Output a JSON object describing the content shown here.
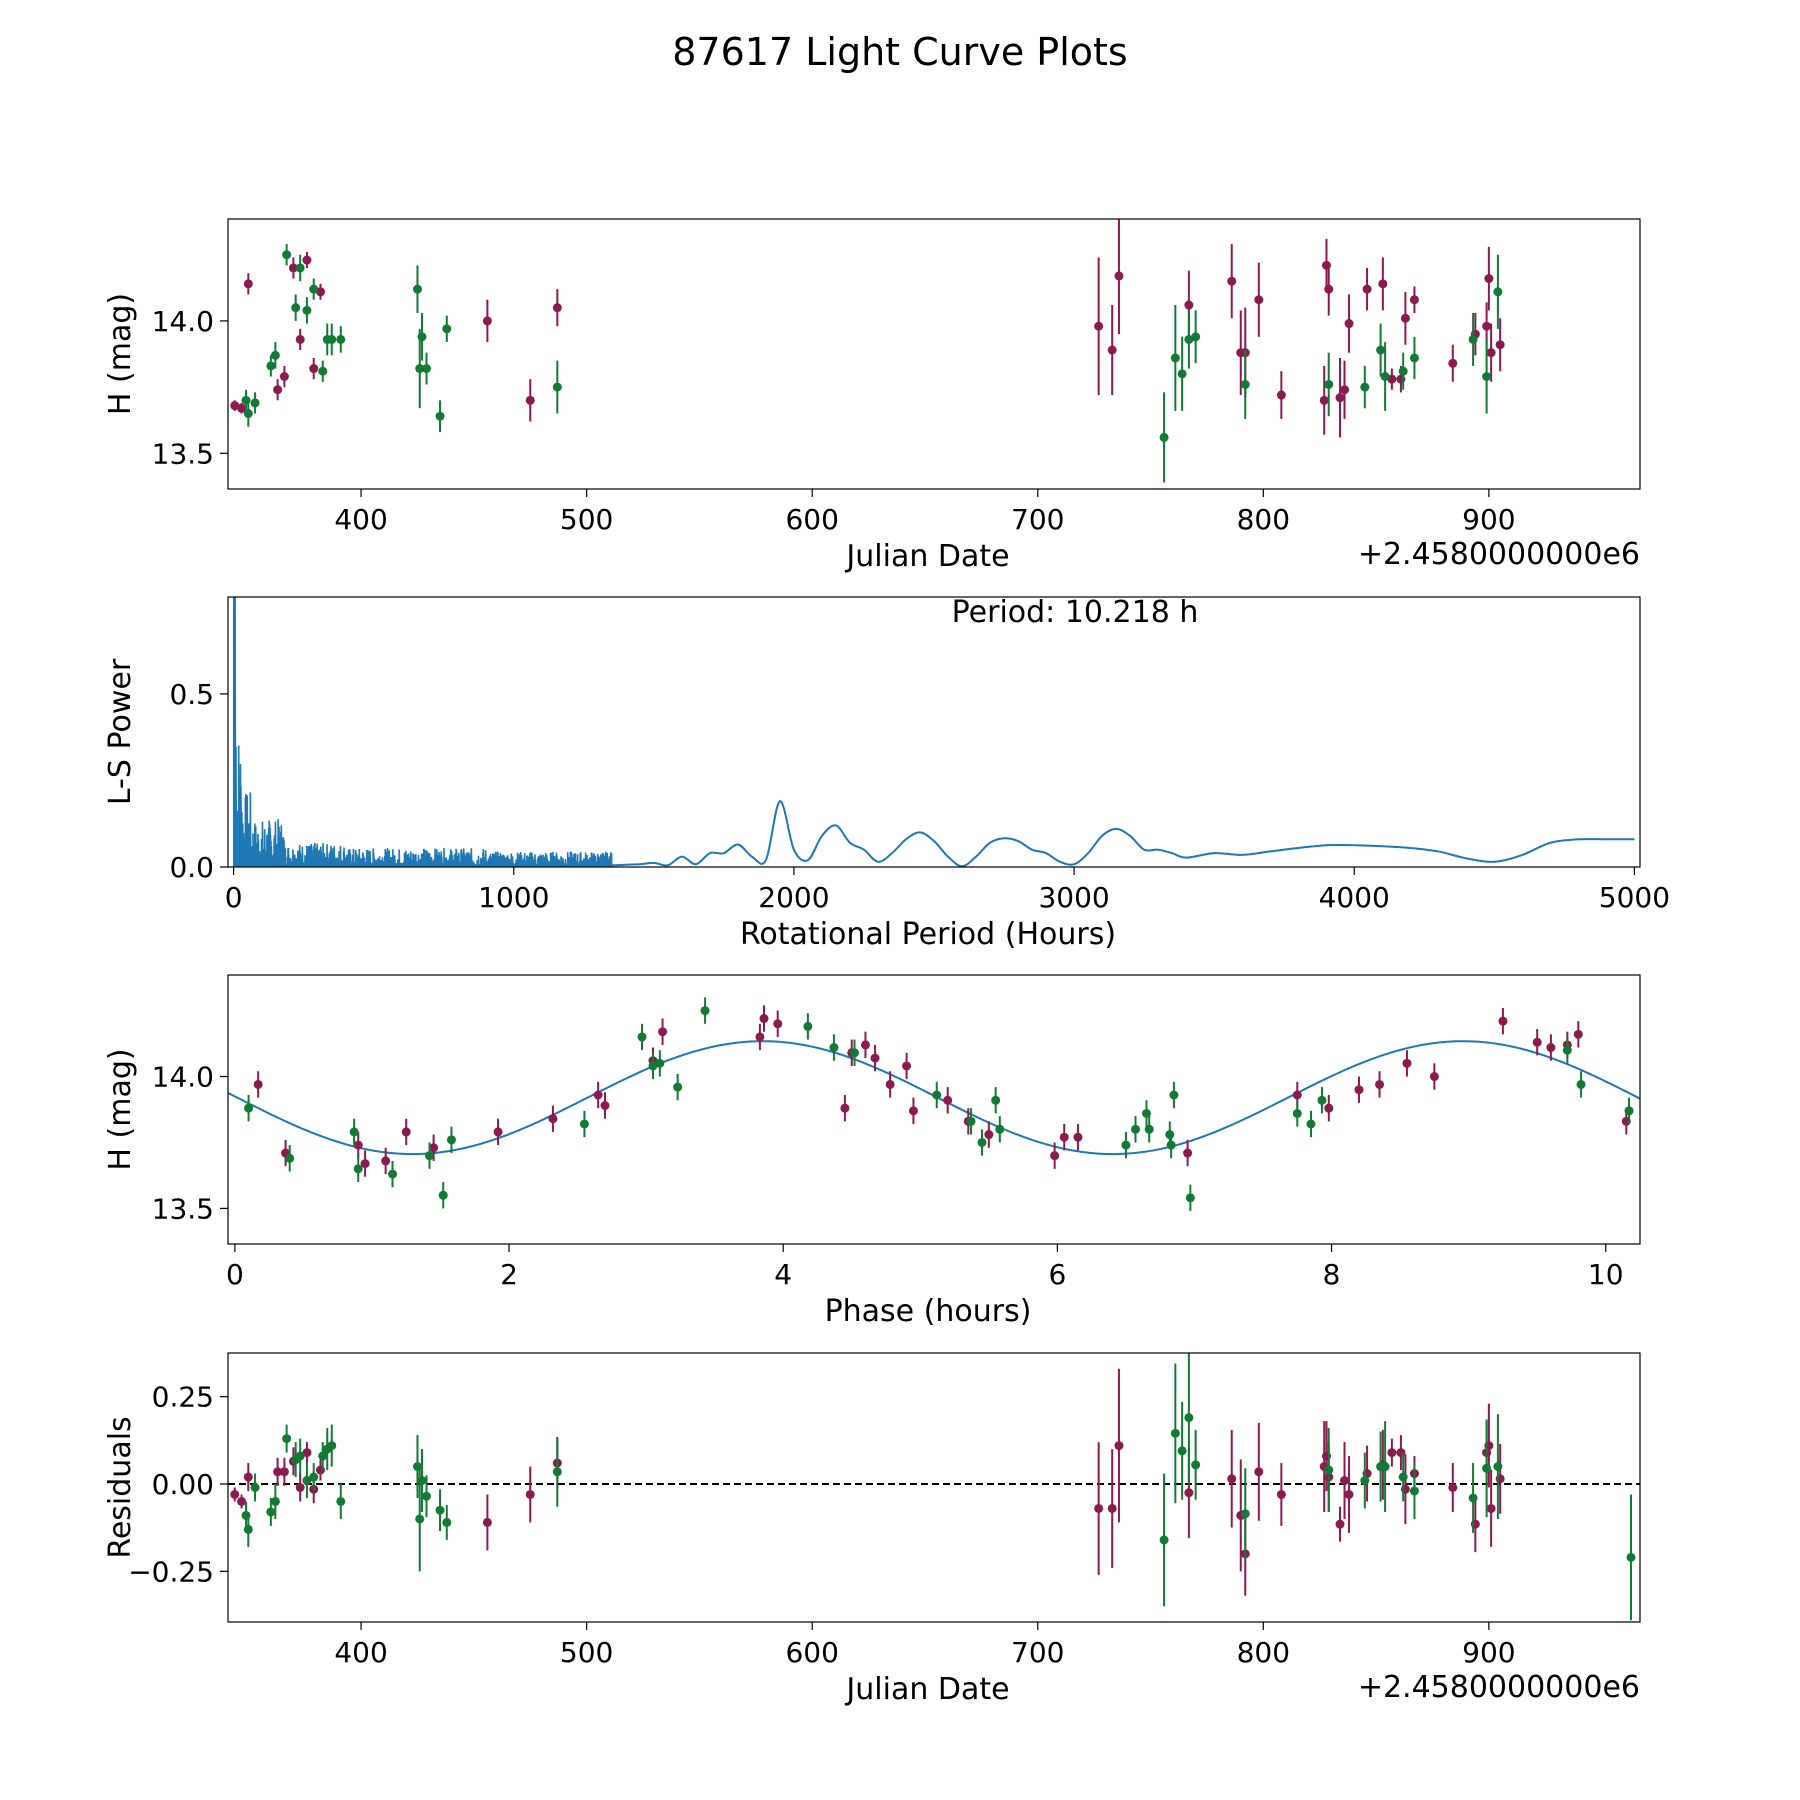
{
  "title": "87617 Light Curve Plots",
  "colors": {
    "r_band": "#8b1a4f",
    "g_band": "#137a35",
    "fit_line": "#1f77b4",
    "periodogram": "#1f77b4",
    "zero_line": "#000000"
  },
  "chart_data": [
    {
      "id": "lightcurve",
      "type": "scatter",
      "xlabel": "Julian Date",
      "ylabel": "H (mag)",
      "offset_label": "+2.4580000000e6",
      "xlim": [
        341,
        967
      ],
      "ylim": [
        13.365,
        14.385
      ],
      "xticks": [
        400,
        500,
        600,
        700,
        800,
        900
      ],
      "yticks": [
        13.5,
        14.0
      ],
      "ytick_labels": [
        "13.5",
        "14.0"
      ],
      "series": [
        {
          "name": "r",
          "color_key": "r_band",
          "x": [
            344,
            347,
            350,
            363,
            366,
            370,
            373,
            376,
            379,
            382,
            456,
            475,
            487,
            727,
            733,
            736,
            767,
            786,
            790,
            792,
            798,
            808,
            827,
            828,
            829,
            834,
            836,
            838,
            846,
            853,
            857,
            861,
            863,
            867,
            884,
            894,
            899,
            900,
            901,
            905
          ],
          "y": [
            13.68,
            13.67,
            14.14,
            13.74,
            13.79,
            14.2,
            13.93,
            14.23,
            13.82,
            14.11,
            14.0,
            13.7,
            14.05,
            13.98,
            13.89,
            14.17,
            14.06,
            14.15,
            13.88,
            13.88,
            14.08,
            13.72,
            13.7,
            14.21,
            14.12,
            13.71,
            13.74,
            13.99,
            14.12,
            14.14,
            13.78,
            13.78,
            14.01,
            14.08,
            13.84,
            13.95,
            13.98,
            14.16,
            13.88,
            13.91
          ],
          "err": [
            0.02,
            0.02,
            0.04,
            0.04,
            0.04,
            0.04,
            0.04,
            0.03,
            0.04,
            0.03,
            0.08,
            0.08,
            0.07,
            0.26,
            0.17,
            0.22,
            0.13,
            0.14,
            0.16,
            0.17,
            0.14,
            0.09,
            0.13,
            0.1,
            0.1,
            0.15,
            0.11,
            0.11,
            0.08,
            0.1,
            0.04,
            0.05,
            0.1,
            0.05,
            0.07,
            0.08,
            0.09,
            0.12,
            0.11,
            0.1
          ]
        },
        {
          "name": "g",
          "color_key": "g_band",
          "x": [
            349,
            350,
            353,
            360,
            362,
            367,
            371,
            373,
            376,
            379,
            383,
            385,
            387,
            391,
            425,
            426,
            427,
            429,
            435,
            438,
            487,
            756,
            761,
            764,
            767,
            770,
            792,
            829,
            845,
            852,
            854,
            862,
            867,
            893,
            899,
            904
          ],
          "y": [
            13.7,
            13.65,
            13.69,
            13.83,
            13.87,
            14.25,
            14.05,
            14.2,
            14.04,
            14.12,
            13.81,
            13.93,
            13.93,
            13.93,
            14.12,
            13.82,
            13.94,
            13.82,
            13.64,
            13.97,
            13.75,
            13.56,
            13.86,
            13.8,
            13.93,
            13.94,
            13.76,
            13.76,
            13.75,
            13.89,
            13.79,
            13.81,
            13.86,
            13.93,
            13.79,
            14.11
          ],
          "err": [
            0.04,
            0.05,
            0.04,
            0.04,
            0.05,
            0.04,
            0.05,
            0.05,
            0.05,
            0.04,
            0.04,
            0.06,
            0.06,
            0.05,
            0.09,
            0.15,
            0.09,
            0.06,
            0.06,
            0.05,
            0.1,
            0.17,
            0.2,
            0.14,
            0.11,
            0.1,
            0.13,
            0.12,
            0.08,
            0.1,
            0.13,
            0.07,
            0.08,
            0.1,
            0.14,
            0.14
          ]
        }
      ]
    },
    {
      "id": "periodogram",
      "type": "line",
      "annotation": "Period: 10.218 h",
      "xlabel": "Rotational Period (Hours)",
      "ylabel": "L-S Power",
      "xlim": [
        -20,
        5020
      ],
      "ylim": [
        0,
        0.78
      ],
      "xticks": [
        0,
        1000,
        2000,
        3000,
        4000,
        5000
      ],
      "yticks": [
        0.0,
        0.5
      ],
      "ytick_labels": [
        "0.0",
        "0.5"
      ],
      "spike_region": [
        0,
        1350
      ],
      "smooth_curve": {
        "x": [
          1350,
          1450,
          1500,
          1550,
          1600,
          1650,
          1700,
          1750,
          1800,
          1850,
          1900,
          1950,
          2000,
          2050,
          2100,
          2150,
          2200,
          2250,
          2300,
          2350,
          2400,
          2450,
          2500,
          2550,
          2600,
          2650,
          2700,
          2750,
          2800,
          2850,
          2900,
          2950,
          3000,
          3050,
          3100,
          3150,
          3200,
          3250,
          3300,
          3350,
          3400,
          3500,
          3600,
          3700,
          3800,
          3900,
          4000,
          4100,
          4200,
          4300,
          4400,
          4500,
          4600,
          4700,
          4800,
          4900,
          5000
        ],
        "y": [
          0.005,
          0.008,
          0.012,
          0.005,
          0.03,
          0.008,
          0.04,
          0.04,
          0.065,
          0.03,
          0.02,
          0.19,
          0.05,
          0.02,
          0.09,
          0.12,
          0.07,
          0.05,
          0.015,
          0.04,
          0.08,
          0.1,
          0.075,
          0.03,
          0.002,
          0.03,
          0.07,
          0.083,
          0.075,
          0.05,
          0.04,
          0.015,
          0.008,
          0.04,
          0.09,
          0.11,
          0.09,
          0.05,
          0.05,
          0.04,
          0.027,
          0.04,
          0.035,
          0.045,
          0.055,
          0.063,
          0.063,
          0.06,
          0.055,
          0.045,
          0.025,
          0.015,
          0.035,
          0.07,
          0.08,
          0.08,
          0.08
        ]
      }
    },
    {
      "id": "phased",
      "type": "scatter",
      "xlabel": "Phase (hours)",
      "ylabel": "H (mag)",
      "xlim": [
        -0.05,
        10.25
      ],
      "ylim": [
        13.365,
        14.385
      ],
      "xticks": [
        0,
        2,
        4,
        6,
        8,
        10
      ],
      "yticks": [
        13.5,
        14.0
      ],
      "ytick_labels": [
        "13.5",
        "14.0"
      ],
      "fit": {
        "mean": 13.92,
        "amplitude": 0.214,
        "period": 5.109,
        "phase_shift": 3.85
      },
      "series": [
        {
          "name": "r",
          "color_key": "r_band",
          "x": [
            0.17,
            0.37,
            0.9,
            0.95,
            1.1,
            1.25,
            1.45,
            1.92,
            2.32,
            2.65,
            2.7,
            3.05,
            3.12,
            3.83,
            3.86,
            3.96,
            4.45,
            4.5,
            4.6,
            4.67,
            4.78,
            4.9,
            4.95,
            5.2,
            5.35,
            5.5,
            5.98,
            6.05,
            6.15,
            6.95,
            7.75,
            7.98,
            8.2,
            8.35,
            8.55,
            8.75,
            9.25,
            9.5,
            9.6,
            9.72,
            9.8,
            10.15
          ],
          "y": [
            13.97,
            13.71,
            13.74,
            13.67,
            13.68,
            13.79,
            13.73,
            13.79,
            13.84,
            13.93,
            13.89,
            14.06,
            14.17,
            14.15,
            14.22,
            14.2,
            13.88,
            14.09,
            14.12,
            14.07,
            13.97,
            14.04,
            13.87,
            13.91,
            13.83,
            13.78,
            13.7,
            13.77,
            13.77,
            13.71,
            13.93,
            13.88,
            13.95,
            13.97,
            14.05,
            14.0,
            14.21,
            14.13,
            14.11,
            14.12,
            14.16,
            13.83
          ]
        },
        {
          "name": "g",
          "color_key": "g_band",
          "x": [
            0.1,
            0.4,
            0.87,
            0.9,
            1.15,
            1.42,
            1.52,
            1.58,
            2.55,
            2.97,
            3.05,
            3.1,
            3.23,
            3.43,
            4.18,
            4.37,
            4.52,
            5.12,
            5.37,
            5.45,
            5.55,
            5.58,
            6.5,
            6.57,
            6.65,
            6.67,
            6.82,
            6.83,
            6.85,
            6.97,
            7.75,
            7.85,
            7.93,
            9.72,
            9.82,
            10.17
          ],
          "y": [
            13.88,
            13.69,
            13.79,
            13.65,
            13.63,
            13.7,
            13.55,
            13.76,
            13.82,
            14.15,
            14.04,
            14.05,
            13.96,
            14.25,
            14.19,
            14.11,
            14.09,
            13.93,
            13.83,
            13.75,
            13.91,
            13.8,
            13.74,
            13.8,
            13.86,
            13.8,
            13.78,
            13.74,
            13.93,
            13.54,
            13.86,
            13.82,
            13.91,
            14.1,
            13.97,
            13.87
          ]
        }
      ]
    },
    {
      "id": "residuals",
      "type": "scatter",
      "xlabel": "Julian Date",
      "ylabel": "Residuals",
      "offset_label": "+2.4580000000e6",
      "xlim": [
        341,
        967
      ],
      "ylim": [
        -0.395,
        0.375
      ],
      "xticks": [
        400,
        500,
        600,
        700,
        800,
        900
      ],
      "yticks": [
        -0.25,
        0.0,
        0.25
      ],
      "ytick_labels": [
        "−0.25",
        "0.00",
        "0.25"
      ],
      "series": [
        {
          "name": "r",
          "color_key": "r_band",
          "x": [
            344,
            347,
            350,
            363,
            366,
            370,
            373,
            376,
            379,
            382,
            456,
            475,
            487,
            727,
            733,
            736,
            767,
            786,
            790,
            792,
            798,
            808,
            827,
            828,
            829,
            834,
            836,
            838,
            846,
            853,
            857,
            861,
            863,
            867,
            884,
            894,
            899,
            900,
            901,
            905
          ],
          "y": [
            -0.03,
            -0.05,
            0.02,
            0.035,
            0.035,
            0.065,
            -0.01,
            0.09,
            -0.015,
            0.04,
            -0.11,
            -0.03,
            0.06,
            -0.07,
            -0.07,
            0.11,
            -0.025,
            0.015,
            -0.09,
            -0.2,
            0.035,
            -0.03,
            0.05,
            0.08,
            0.02,
            -0.115,
            0.01,
            -0.03,
            0.03,
            0.055,
            0.09,
            0.09,
            -0.015,
            0.03,
            -0.01,
            -0.115,
            0.09,
            0.11,
            -0.07,
            0.015
          ],
          "err": [
            0.02,
            0.02,
            0.04,
            0.04,
            0.04,
            0.04,
            0.04,
            0.03,
            0.04,
            0.03,
            0.08,
            0.08,
            0.07,
            0.19,
            0.17,
            0.22,
            0.13,
            0.14,
            0.16,
            0.12,
            0.14,
            0.09,
            0.13,
            0.1,
            0.1,
            0.05,
            0.11,
            0.11,
            0.08,
            0.1,
            0.04,
            0.05,
            0.1,
            0.05,
            0.07,
            0.08,
            0.09,
            0.12,
            0.11,
            0.1
          ]
        },
        {
          "name": "g",
          "color_key": "g_band",
          "x": [
            349,
            350,
            353,
            360,
            362,
            367,
            371,
            373,
            376,
            379,
            383,
            385,
            387,
            391,
            425,
            426,
            427,
            429,
            435,
            438,
            487,
            756,
            761,
            764,
            767,
            770,
            792,
            829,
            845,
            852,
            854,
            862,
            867,
            893,
            899,
            904,
            963
          ],
          "y": [
            -0.09,
            -0.13,
            -0.01,
            -0.08,
            -0.05,
            0.13,
            0.07,
            0.08,
            0.01,
            0.02,
            0.08,
            0.1,
            0.11,
            -0.05,
            0.05,
            -0.1,
            0.01,
            -0.035,
            -0.075,
            -0.11,
            0.035,
            -0.16,
            0.145,
            0.095,
            0.19,
            0.055,
            -0.085,
            0.04,
            0.01,
            0.05,
            0.05,
            0.02,
            -0.02,
            -0.04,
            0.045,
            0.05,
            -0.21
          ],
          "err": [
            0.04,
            0.05,
            0.04,
            0.04,
            0.05,
            0.04,
            0.05,
            0.05,
            0.05,
            0.04,
            0.04,
            0.06,
            0.06,
            0.05,
            0.09,
            0.15,
            0.09,
            0.06,
            0.06,
            0.05,
            0.1,
            0.19,
            0.2,
            0.14,
            0.19,
            0.1,
            0.13,
            0.12,
            0.08,
            0.1,
            0.13,
            0.07,
            0.08,
            0.1,
            0.14,
            0.15,
            0.18
          ]
        }
      ]
    }
  ]
}
